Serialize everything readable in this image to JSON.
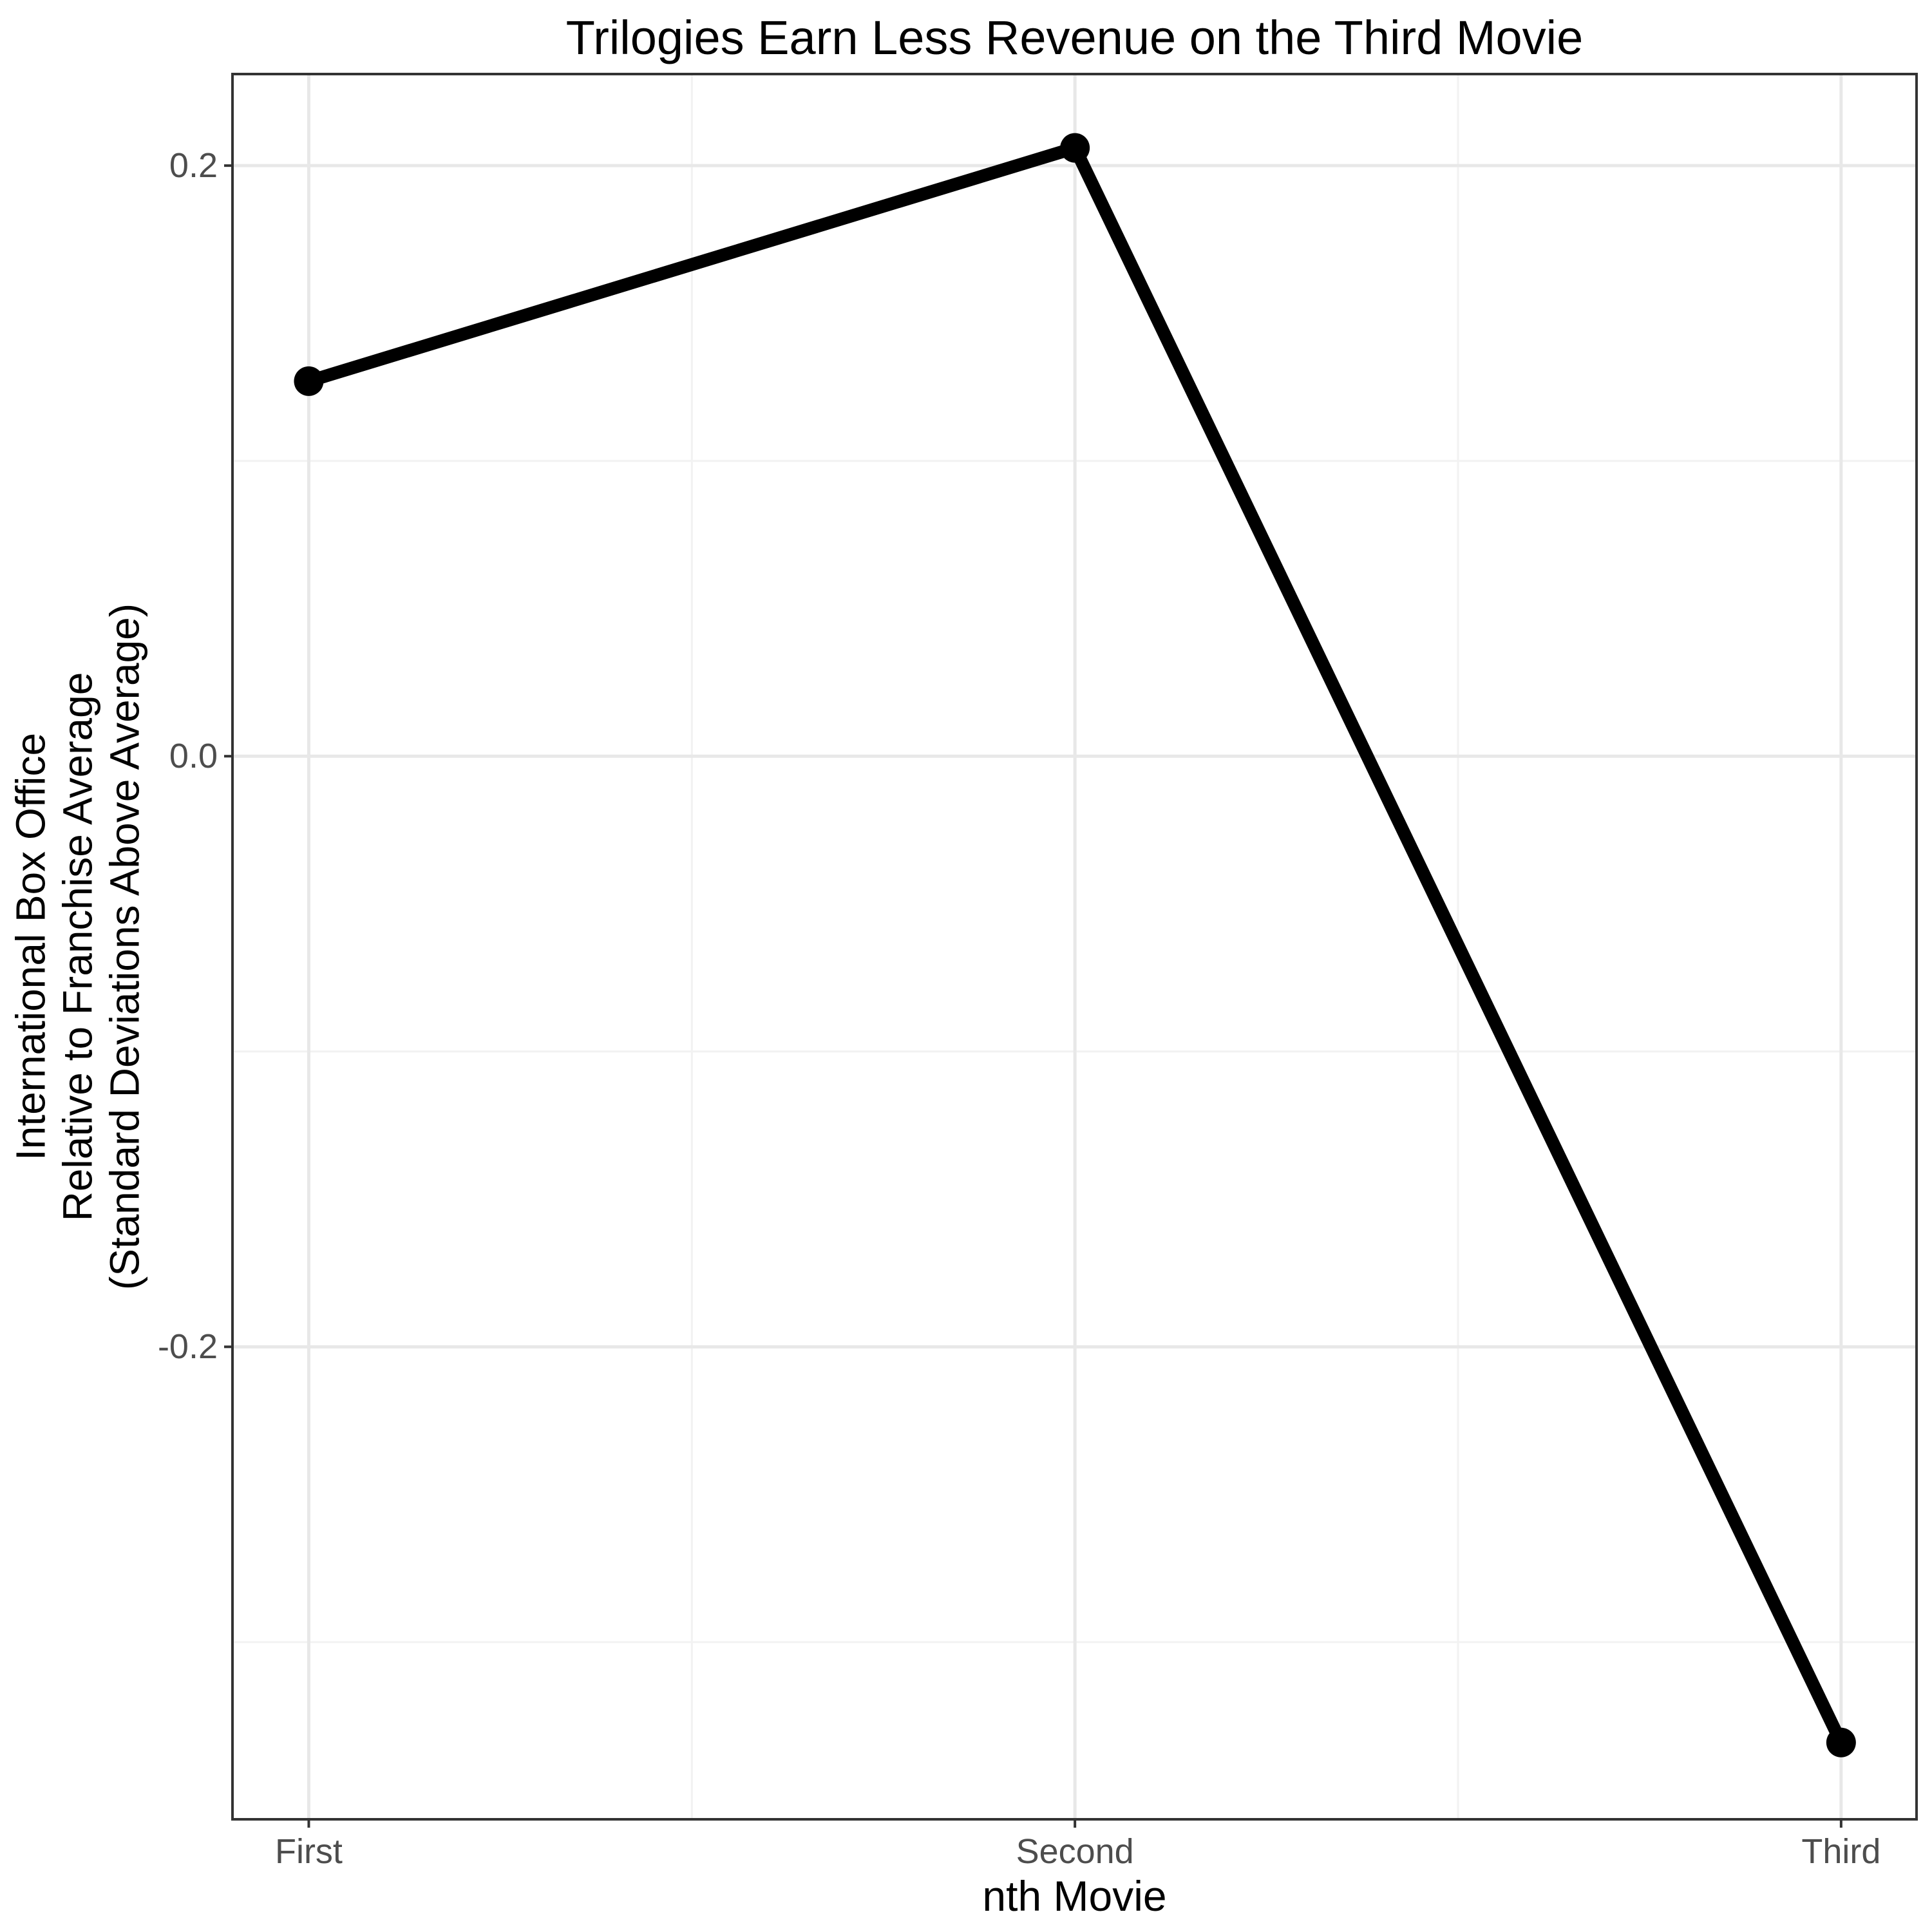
{
  "chart_data": {
    "type": "line",
    "title": "Trilogies Earn Less Revenue on the Third Movie",
    "xlabel": "nth Movie",
    "ylabel_lines": [
      "International Box Office",
      "Relative to Franchise Average",
      "(Standard Deviations Above Average)"
    ],
    "categories": [
      "First",
      "Second",
      "Third"
    ],
    "values": [
      0.127,
      0.206,
      -0.334
    ],
    "ylim": [
      -0.36,
      0.231
    ],
    "y_ticks": [
      {
        "label": "0.2",
        "value": 0.2
      },
      {
        "label": "0.0",
        "value": 0.0
      },
      {
        "label": "-0.2",
        "value": -0.2
      }
    ],
    "y_minor_gridlines": [
      0.1,
      -0.1,
      -0.3
    ],
    "grid": true,
    "legend": "none",
    "line_color": "#000000",
    "point_color": "#000000",
    "major_grid_color": "#e8e8e8",
    "minor_grid_color": "#f2f2f2",
    "panel_border_color": "#333333",
    "tick_color": "#333333",
    "tick_label_color": "#4d4d4d"
  }
}
